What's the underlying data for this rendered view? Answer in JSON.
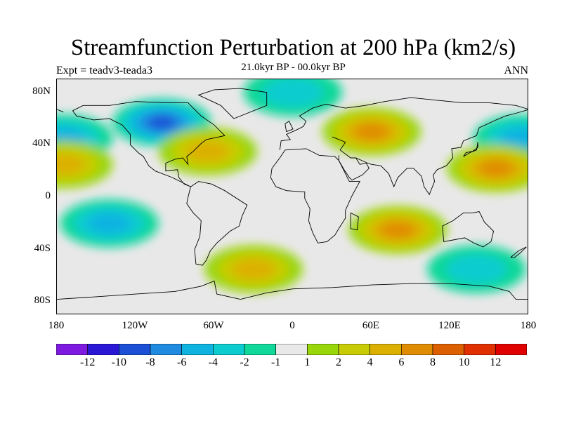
{
  "title": "Streamfunction Perturbation at 200 hPa (km2/s)",
  "subtitle_left": "Expt = teadv3-teada3",
  "subtitle_center": "21.0kyr BP - 00.0kyr BP",
  "subtitle_right": "ANN",
  "map": {
    "projection": "cylindrical-equidistant",
    "lon_range": [
      -180,
      180
    ],
    "lat_range": [
      -90,
      90
    ],
    "lat_ticks": [
      {
        "value": 80,
        "label": "80N"
      },
      {
        "value": 40,
        "label": "40N"
      },
      {
        "value": 0,
        "label": "0"
      },
      {
        "value": -40,
        "label": "40S"
      },
      {
        "value": -80,
        "label": "80S"
      }
    ],
    "lon_ticks": [
      {
        "value": -180,
        "label": "180"
      },
      {
        "value": -120,
        "label": "120W"
      },
      {
        "value": -60,
        "label": "60W"
      },
      {
        "value": 0,
        "label": "0"
      },
      {
        "value": 60,
        "label": "60E"
      },
      {
        "value": 120,
        "label": "120E"
      },
      {
        "value": 180,
        "label": "180"
      }
    ],
    "background_color": "#e8e8e8"
  },
  "colorbar": {
    "labels": [
      "-12",
      "-10",
      "-8",
      "-6",
      "-4",
      "-2",
      "-1",
      "1",
      "2",
      "4",
      "6",
      "8",
      "10",
      "12"
    ],
    "colors": [
      "#7e1ae0",
      "#2a17d6",
      "#1a4fd6",
      "#1e8be0",
      "#0fb3e0",
      "#0cccd0",
      "#10d89a",
      "#e8e8e8",
      "#99d60a",
      "#c8cc06",
      "#dcb000",
      "#e08c00",
      "#dc6000",
      "#e03000",
      "#e00000"
    ]
  },
  "chart_data": {
    "type": "heatmap",
    "field": "Streamfunction Perturbation at 200 hPa (km2/s)",
    "contour_levels": [
      -12,
      -10,
      -8,
      -6,
      -4,
      -2,
      -1,
      1,
      2,
      4,
      6,
      8,
      10,
      12
    ],
    "features": [
      {
        "lon": -100,
        "lat": 57,
        "value": -8
      },
      {
        "lon": -175,
        "lat": 45,
        "value": -4
      },
      {
        "lon": 175,
        "lat": 45,
        "value": -4
      },
      {
        "lon": -175,
        "lat": 25,
        "value": 4
      },
      {
        "lon": -65,
        "lat": 35,
        "value": 4
      },
      {
        "lon": 60,
        "lat": 50,
        "value": 6
      },
      {
        "lon": 155,
        "lat": 22,
        "value": 6
      },
      {
        "lon": 80,
        "lat": -25,
        "value": 6
      },
      {
        "lon": -140,
        "lat": -20,
        "value": -4
      },
      {
        "lon": -30,
        "lat": -55,
        "value": 4
      },
      {
        "lon": 0,
        "lat": 80,
        "value": -2
      },
      {
        "lon": 140,
        "lat": -55,
        "value": -2
      }
    ]
  }
}
